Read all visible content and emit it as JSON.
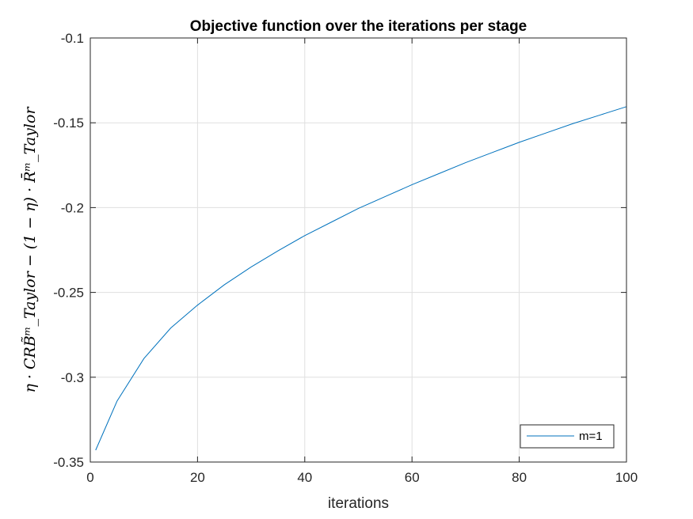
{
  "chart_data": {
    "type": "line",
    "title": "Objective function over the iterations per stage",
    "xlabel": "iterations",
    "ylabel": "η · CRB̃ᵐ_Taylor − (1 − η) · R̄ᵐ_Taylor",
    "xlim": [
      0,
      100
    ],
    "ylim": [
      -0.35,
      -0.1
    ],
    "xticks": [
      0,
      20,
      40,
      60,
      80,
      100
    ],
    "xtick_labels": [
      "0",
      "20",
      "40",
      "60",
      "80",
      "100"
    ],
    "yticks": [
      -0.35,
      -0.3,
      -0.25,
      -0.2,
      -0.15,
      -0.1
    ],
    "ytick_labels": [
      "-0.35",
      "-0.3",
      "-0.25",
      "-0.2",
      "-0.15",
      "-0.1"
    ],
    "grid": true,
    "legend_position": "bottom-right",
    "series": [
      {
        "name": "m=1",
        "color": "#0072bd",
        "x": [
          1,
          5,
          10,
          15,
          20,
          25,
          30,
          35,
          40,
          45,
          50,
          55,
          60,
          65,
          70,
          75,
          80,
          85,
          90,
          95,
          100
        ],
        "y": [
          -0.343,
          -0.314,
          -0.289,
          -0.271,
          -0.2575,
          -0.2455,
          -0.235,
          -0.2255,
          -0.2165,
          -0.2085,
          -0.2005,
          -0.1935,
          -0.1865,
          -0.18,
          -0.1735,
          -0.1675,
          -0.1615,
          -0.156,
          -0.1505,
          -0.1455,
          -0.1405
        ]
      }
    ]
  }
}
